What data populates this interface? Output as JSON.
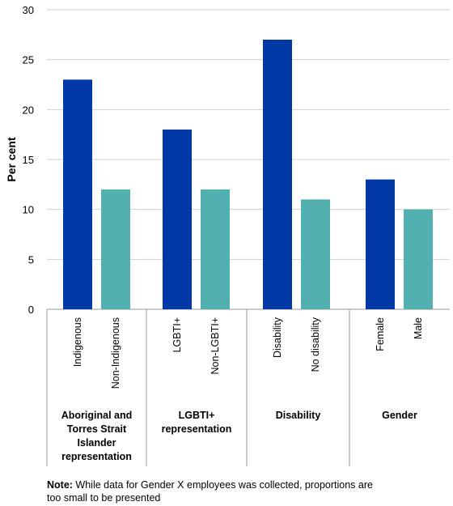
{
  "chart_data": {
    "type": "bar",
    "ylabel": "Per cent",
    "ylim": [
      0,
      30
    ],
    "yticks": [
      0,
      5,
      10,
      15,
      20,
      25,
      30
    ],
    "grid": true,
    "groups": [
      {
        "label": [
          "Aboriginal and",
          "Torres Strait",
          "Islander",
          "representation"
        ],
        "bars": [
          {
            "category": "Indigenous",
            "value": 23,
            "color": "#0039a6"
          },
          {
            "category": "Non-Indigenous",
            "value": 12,
            "color": "#52b0b0"
          }
        ]
      },
      {
        "label": [
          "LGBTI+",
          "representation"
        ],
        "bars": [
          {
            "category": "LGBTI+",
            "value": 18,
            "color": "#0039a6"
          },
          {
            "category": "Non-LGBTI+",
            "value": 12,
            "color": "#52b0b0"
          }
        ]
      },
      {
        "label": [
          "Disability"
        ],
        "bars": [
          {
            "category": "Disability",
            "value": 27,
            "color": "#0039a6"
          },
          {
            "category": "No disability",
            "value": 11,
            "color": "#52b0b0"
          }
        ]
      },
      {
        "label": [
          "Gender"
        ],
        "bars": [
          {
            "category": "Female",
            "value": 13,
            "color": "#0039a6"
          },
          {
            "category": "Male",
            "value": 10,
            "color": "#52b0b0"
          }
        ]
      }
    ]
  },
  "note": {
    "prefix": "Note:",
    "text": " While data for Gender X employees was collected, proportions are too small to be presented"
  }
}
